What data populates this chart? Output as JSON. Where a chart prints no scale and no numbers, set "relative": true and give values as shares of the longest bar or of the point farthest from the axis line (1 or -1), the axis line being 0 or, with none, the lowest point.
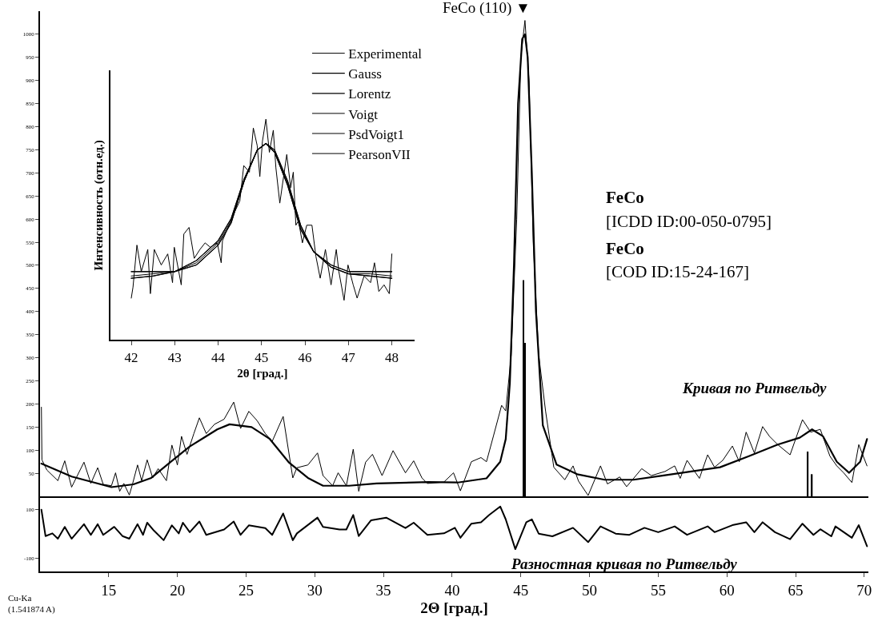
{
  "chart_data": [
    {
      "type": "line",
      "xlim": [
        10,
        70.3
      ],
      "ylim": [
        0,
        1050
      ],
      "yticks": [
        50,
        100,
        150,
        200,
        250,
        300,
        350,
        400,
        450,
        500,
        550,
        600,
        650,
        700,
        750,
        800,
        850,
        900,
        950,
        1000
      ],
      "tick_labels": "y",
      "grid": false,
      "legend": false,
      "series": [
        {
          "color": "#000000",
          "x": [
            10.1,
            10.14,
            10.5,
            11.3,
            11.8,
            12.3,
            13.2,
            13.7,
            14.2,
            14.6,
            15.2,
            15.5,
            15.8,
            16.1,
            16.5,
            16.7,
            17.1,
            17.4,
            17.8,
            18.2,
            18.6,
            19.2,
            19.6,
            20.0,
            20.3,
            20.7,
            21.2,
            21.6,
            22.1,
            22.7,
            23.4,
            24.1,
            24.6,
            25.2,
            25.8,
            26.4,
            26.9,
            27.7,
            28.4,
            28.7,
            29.5,
            30.2,
            30.6,
            31.3,
            31.7,
            32.3,
            32.8,
            33.2,
            33.7,
            34.2,
            34.9,
            35.7,
            36.6,
            37.2,
            37.8,
            38.2,
            39.4,
            40.1,
            40.6,
            41.4,
            42.1,
            42.5,
            43.0,
            43.6,
            43.9,
            44.3,
            44.7,
            45.0,
            45.3,
            45.6,
            45.9,
            46.3,
            46.8,
            47.4,
            48.2,
            48.8,
            49.2,
            49.9,
            50.8,
            51.3,
            52.2,
            52.7,
            53.8,
            54.5,
            55.5,
            56.2,
            56.6,
            57.1,
            58.0,
            58.6,
            59.1,
            59.7,
            60.4,
            60.9,
            61.4,
            62.0,
            62.6,
            63.1,
            63.7,
            64.6,
            65.5,
            66.1,
            66.8,
            67.5,
            68.0,
            68.5,
            69.1,
            69.6,
            70.2
          ],
          "values": [
            193,
            79,
            57,
            34,
            77,
            20,
            74,
            28,
            62,
            26,
            23,
            51,
            11,
            28,
            3,
            23,
            68,
            34,
            79,
            40,
            60,
            34,
            111,
            68,
            130,
            91,
            136,
            170,
            136,
            156,
            167,
            204,
            147,
            184,
            164,
            136,
            119,
            173,
            40,
            62,
            68,
            94,
            45,
            23,
            51,
            23,
            102,
            11,
            74,
            91,
            45,
            99,
            51,
            77,
            40,
            28,
            31,
            51,
            12,
            75,
            84,
            75,
            130,
            197,
            185,
            306,
            600,
            950,
            1030,
            900,
            550,
            306,
            185,
            63,
            36,
            66,
            33,
            2,
            66,
            27,
            42,
            21,
            60,
            45,
            54,
            66,
            39,
            78,
            39,
            90,
            63,
            78,
            109,
            75,
            139,
            94,
            151,
            130,
            112,
            90,
            166,
            139,
            145,
            87,
            66,
            51,
            30,
            112,
            66
          ]
        },
        {
          "name": "Кривая по Ритвельду",
          "color": "#000000",
          "x": [
            10.1,
            12.3,
            15.2,
            16.8,
            18.1,
            19.6,
            20.9,
            22.9,
            23.8,
            25.4,
            26.7,
            28.1,
            29.5,
            30.6,
            32.5,
            34.5,
            38.3,
            40.4,
            42.5,
            43.5,
            43.9,
            44.2,
            44.5,
            44.8,
            45.1,
            45.3,
            45.5,
            45.8,
            46.1,
            46.6,
            47.6,
            49.1,
            51.1,
            53.2,
            55.3,
            57.4,
            59.5,
            61.6,
            63.7,
            65.3,
            66.2,
            67.0,
            68.0,
            68.9,
            69.7,
            70.2
          ],
          "values": [
            71,
            43,
            20,
            26,
            40,
            77,
            108,
            145,
            156,
            150,
            125,
            74,
            40,
            23,
            23,
            28,
            31,
            30,
            39,
            75,
            124,
            245,
            500,
            850,
            990,
            1000,
            950,
            700,
            400,
            154,
            69,
            48,
            36,
            36,
            45,
            54,
            63,
            87,
            112,
            127,
            145,
            130,
            75,
            51,
            75,
            124
          ]
        },
        {
          "type": "bar",
          "color": "#000000",
          "x": [
            45.2,
            45.3,
            65.9,
            66.2
          ],
          "values": [
            468,
            332,
            97,
            48
          ]
        }
      ],
      "annotations": [
        {
          "text": "FeCo (110) ▼",
          "x": 45.3,
          "y": 1030
        },
        "FeCo",
        "[ICDD ID:00-050-0795]",
        "FeCo",
        "[COD ID:15-24-167]",
        "Cu-Ka\n(1.541874 A)"
      ]
    },
    {
      "type": "line",
      "xlim": [
        10,
        70.3
      ],
      "ylim": [
        -155,
        150
      ],
      "yticks": [
        -100,
        100
      ],
      "xticks": [
        15,
        20,
        25,
        30,
        35,
        40,
        45,
        50,
        55,
        60,
        65,
        70
      ],
      "xlabel": "2Θ [град.]",
      "grid": false,
      "legend": false,
      "series": [
        {
          "name": "Разностная кривая по Ритвельду",
          "color": "#000000",
          "x": [
            10.1,
            10.4,
            10.9,
            11.3,
            11.8,
            12.3,
            13.2,
            13.7,
            14.2,
            14.6,
            15.4,
            16.0,
            16.5,
            17.1,
            17.5,
            17.8,
            18.3,
            19.0,
            19.6,
            20.1,
            20.4,
            20.9,
            21.6,
            22.1,
            23.4,
            24.1,
            24.6,
            25.2,
            26.4,
            26.9,
            27.7,
            28.4,
            28.7,
            30.2,
            30.6,
            31.8,
            32.3,
            32.8,
            33.2,
            34.1,
            35.2,
            36.6,
            37.2,
            38.2,
            39.4,
            40.2,
            40.6,
            41.4,
            42.1,
            42.7,
            43.5,
            43.9,
            44.6,
            45.4,
            45.8,
            46.3,
            47.3,
            48.8,
            49.9,
            50.8,
            51.9,
            52.9,
            54.0,
            55.0,
            56.2,
            57.1,
            58.6,
            59.1,
            60.4,
            61.4,
            62.0,
            62.6,
            63.5,
            64.6,
            65.5,
            66.3,
            66.8,
            67.6,
            67.9,
            69.1,
            69.6,
            70.2
          ],
          "values": [
            100,
            -9,
            2,
            -20,
            29,
            -20,
            40,
            -4,
            40,
            -4,
            29,
            -9,
            -20,
            40,
            -4,
            46,
            13,
            -26,
            35,
            2,
            46,
            7,
            51,
            -4,
            18,
            51,
            -4,
            35,
            24,
            -4,
            84,
            -26,
            2,
            67,
            29,
            18,
            18,
            78,
            -9,
            56,
            67,
            24,
            46,
            -4,
            2,
            25,
            -16,
            42,
            48,
            78,
            113,
            60,
            -63,
            48,
            60,
            1,
            -10,
            25,
            -34,
            31,
            1,
            -4,
            25,
            7,
            31,
            -4,
            31,
            7,
            36,
            48,
            7,
            48,
            7,
            -22,
            42,
            -4,
            19,
            -10,
            31,
            -16,
            36,
            -51
          ]
        }
      ]
    },
    {
      "type": "line",
      "relative": true,
      "xlim": [
        41.52,
        48.52
      ],
      "xticks": [
        42,
        43,
        44,
        45,
        46,
        47,
        48
      ],
      "xlabel": "2θ [град.]",
      "ylabel": "Интенсивность (отн.ед.)",
      "tick_labels": "x",
      "grid": false,
      "legend": "top right",
      "series": [
        {
          "name": "Experimental",
          "color": "#000000",
          "x": [
            42.0,
            42.04,
            42.13,
            42.23,
            42.38,
            42.44,
            42.53,
            42.69,
            42.84,
            42.95,
            42.99,
            43.15,
            43.21,
            43.33,
            43.45,
            43.58,
            43.7,
            43.82,
            43.98,
            44.07,
            44.1,
            44.25,
            44.38,
            44.5,
            44.59,
            44.72,
            44.81,
            44.9,
            44.96,
            45.02,
            45.1,
            45.18,
            45.27,
            45.33,
            45.42,
            45.58,
            45.67,
            45.73,
            45.79,
            45.85,
            45.94,
            46.04,
            46.16,
            46.25,
            46.35,
            46.47,
            46.6,
            46.72,
            46.78,
            46.9,
            46.99,
            47.11,
            47.2,
            47.36,
            47.51,
            47.6,
            47.7,
            47.82,
            47.94,
            48.0
          ],
          "values": [
            0.19,
            0.24,
            0.43,
            0.31,
            0.41,
            0.21,
            0.41,
            0.34,
            0.39,
            0.26,
            0.42,
            0.25,
            0.48,
            0.51,
            0.37,
            0.41,
            0.44,
            0.42,
            0.44,
            0.35,
            0.45,
            0.52,
            0.58,
            0.63,
            0.79,
            0.76,
            0.96,
            0.88,
            0.74,
            0.9,
            1.0,
            0.85,
            0.95,
            0.78,
            0.62,
            0.84,
            0.69,
            0.76,
            0.52,
            0.54,
            0.44,
            0.52,
            0.52,
            0.38,
            0.28,
            0.41,
            0.25,
            0.41,
            0.31,
            0.18,
            0.34,
            0.25,
            0.19,
            0.29,
            0.26,
            0.35,
            0.22,
            0.25,
            0.21,
            0.39
          ]
        },
        {
          "name": "Gauss",
          "color": "#000000",
          "x": [
            42,
            43,
            43.5,
            44,
            44.3,
            44.6,
            44.9,
            45.1,
            45.3,
            45.6,
            45.9,
            46.2,
            46.6,
            47,
            48
          ],
          "values": [
            0.31,
            0.31,
            0.36,
            0.45,
            0.55,
            0.73,
            0.86,
            0.89,
            0.86,
            0.72,
            0.52,
            0.4,
            0.34,
            0.31,
            0.31
          ]
        },
        {
          "name": "Lorentz",
          "color": "#000000",
          "x": [
            42,
            42.5,
            43,
            43.5,
            44,
            44.3,
            44.6,
            44.9,
            45.1,
            45.3,
            45.6,
            45.9,
            46.2,
            46.6,
            47,
            47.5,
            48
          ],
          "values": [
            0.28,
            0.29,
            0.31,
            0.34,
            0.43,
            0.53,
            0.72,
            0.86,
            0.89,
            0.85,
            0.7,
            0.5,
            0.4,
            0.33,
            0.3,
            0.29,
            0.28
          ]
        },
        {
          "name": "Voigt",
          "color": "#000000",
          "x": [
            42,
            42.5,
            43,
            43.5,
            44,
            44.3,
            44.6,
            44.9,
            45.1,
            45.3,
            45.6,
            45.9,
            46.2,
            46.6,
            47,
            47.5,
            48
          ],
          "values": [
            0.29,
            0.3,
            0.31,
            0.35,
            0.44,
            0.54,
            0.72,
            0.86,
            0.89,
            0.85,
            0.71,
            0.51,
            0.4,
            0.33,
            0.3,
            0.3,
            0.29
          ]
        },
        {
          "name": "PsdVoigt1",
          "color": "#000000",
          "x": [
            42,
            42.5,
            43,
            43.5,
            44,
            44.3,
            44.6,
            44.9,
            45.1,
            45.3,
            45.6,
            45.9,
            46.2,
            46.6,
            47,
            47.5,
            48
          ],
          "values": [
            0.28,
            0.29,
            0.31,
            0.34,
            0.43,
            0.53,
            0.72,
            0.86,
            0.89,
            0.85,
            0.7,
            0.5,
            0.4,
            0.33,
            0.3,
            0.29,
            0.28
          ]
        },
        {
          "name": "PearsonVII",
          "color": "#000000",
          "x": [
            42,
            43,
            43.5,
            44,
            44.3,
            44.6,
            44.9,
            45.1,
            45.3,
            45.6,
            45.9,
            46.2,
            46.6,
            47,
            48
          ],
          "values": [
            0.31,
            0.31,
            0.36,
            0.45,
            0.55,
            0.73,
            0.86,
            0.89,
            0.86,
            0.72,
            0.52,
            0.4,
            0.34,
            0.31,
            0.31
          ]
        }
      ]
    }
  ]
}
